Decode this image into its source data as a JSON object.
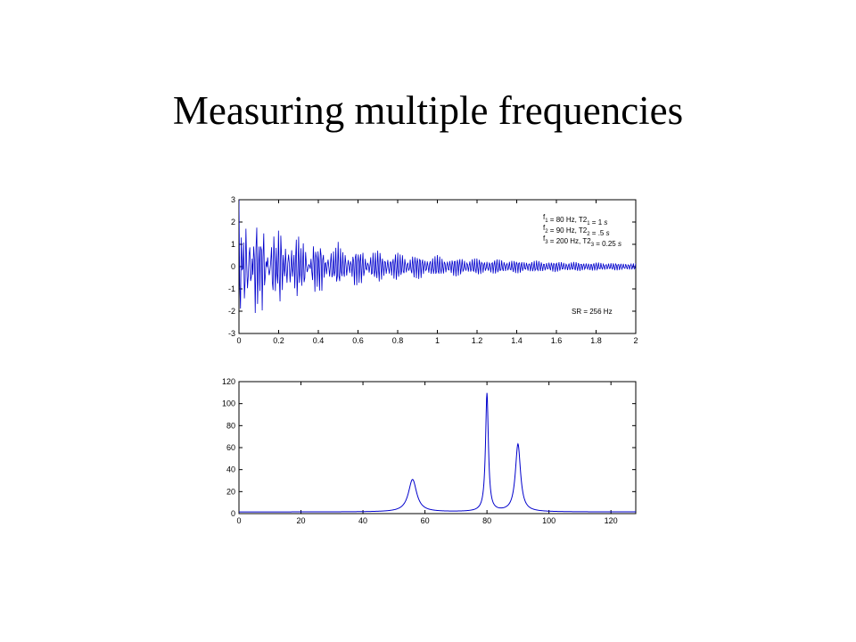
{
  "slide": {
    "title": "Measuring multiple frequencies"
  },
  "chart_data": [
    {
      "type": "line",
      "title": "",
      "xlabel": "",
      "ylabel": "",
      "xlim": [
        0,
        2
      ],
      "ylim": [
        -3,
        3
      ],
      "xticks": [
        "0",
        "0.2",
        "0.4",
        "0.6",
        "0.8",
        "1",
        "1.2",
        "1.4",
        "1.6",
        "1.8",
        "2"
      ],
      "yticks": [
        "3",
        "2",
        "1",
        "0",
        "-1",
        "-2",
        "-3"
      ],
      "series": [
        {
          "components": [
            {
              "frequency_hz": 80,
              "t2_s": 1
            },
            {
              "frequency_hz": 90,
              "t2_s": 0.5
            },
            {
              "frequency_hz": 200,
              "t2_s": 0.25
            }
          ],
          "sample_rate_hz": 256,
          "duration_s": 2
        }
      ],
      "annotations": [
        {
          "var": "f",
          "sub": "1",
          "text": " = 80 Hz,  T2",
          "sub2": "1",
          "value": " = 1 ",
          "unit": "s"
        },
        {
          "var": "f",
          "sub": "2",
          "text": " = 90 Hz,  T2",
          "sub2": "2",
          "value": " = .5 ",
          "unit": "s"
        },
        {
          "var": "f",
          "sub": "3",
          "text": " = 200 Hz,  T2",
          "sub2": "3",
          "value": " = 0.25 ",
          "unit": "s"
        }
      ],
      "sr_label": "SR = 256 Hz",
      "line_color": "#0000cc"
    },
    {
      "type": "line",
      "title": "",
      "xlabel": "",
      "ylabel": "",
      "xlim": [
        0,
        128
      ],
      "ylim": [
        0,
        120
      ],
      "xticks": [
        "0",
        "20",
        "40",
        "60",
        "80",
        "100",
        "120"
      ],
      "yticks": [
        "120",
        "100",
        "80",
        "60",
        "40",
        "20",
        "0"
      ],
      "series": [
        {
          "baseline": 1.5,
          "peaks": [
            {
              "x": 56,
              "y": 31,
              "width": 1.6
            },
            {
              "x": 80,
              "y": 109,
              "width": 0.55
            },
            {
              "x": 90,
              "y": 63,
              "width": 1.0
            }
          ]
        }
      ],
      "line_color": "#0000cc"
    }
  ]
}
